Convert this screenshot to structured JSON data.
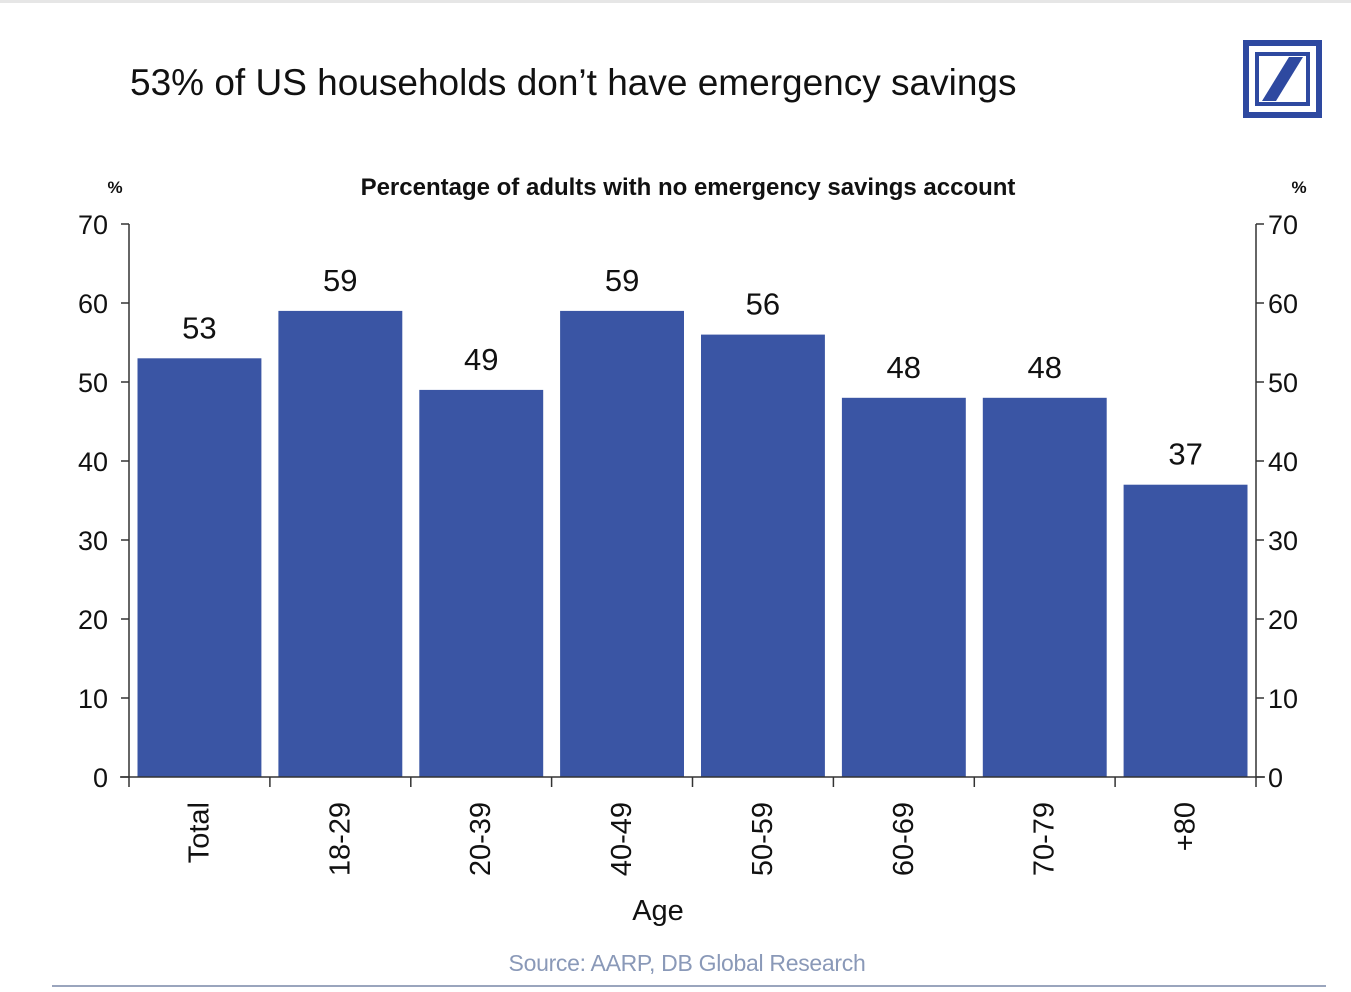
{
  "headline": "53% of US households don’t have emergency savings",
  "source": "Source: AARP, DB Global Research",
  "logo": {
    "icon": "deutsche-bank-logo",
    "color": "#2e49a0"
  },
  "colors": {
    "bar": "#3a55a4",
    "axis": "#333333",
    "text": "#111111"
  },
  "chart_data": {
    "type": "bar",
    "title": "Percentage of adults with no emergency savings account",
    "xlabel": "Age",
    "ylabel_left": "%",
    "ylabel_right": "%",
    "ylim": [
      0,
      70
    ],
    "yticks": [
      "0",
      "10",
      "20",
      "30",
      "40",
      "50",
      "60",
      "70"
    ],
    "categories": [
      "Total",
      "18-29",
      "20-39",
      "40-49",
      "50-59",
      "60-69",
      "70-79",
      "+80"
    ],
    "values": [
      53,
      59,
      49,
      59,
      56,
      48,
      48,
      37
    ],
    "data_labels": [
      "53",
      "59",
      "49",
      "59",
      "56",
      "48",
      "48",
      "37"
    ],
    "grid": false,
    "legend": "none"
  }
}
